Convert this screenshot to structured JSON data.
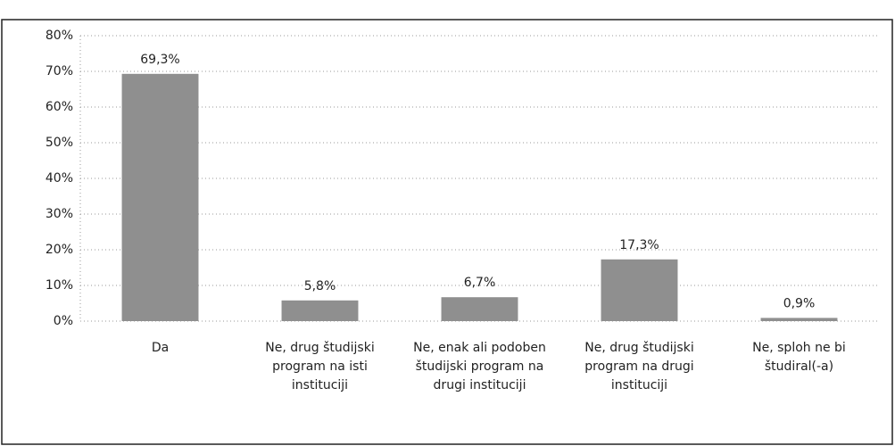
{
  "chart_data": {
    "type": "bar",
    "categories": [
      "Da",
      "Ne, drug študijski program na isti instituciji",
      "Ne, enak ali podoben študijski program na drugi instituciji",
      "Ne, drug študijski program na drugi instituciji",
      "Ne, sploh ne bi študiral(-a)"
    ],
    "values": [
      69.3,
      5.8,
      6.7,
      17.3,
      0.9
    ],
    "value_labels": [
      "69,3%",
      "5,8%",
      "6,7%",
      "17,3%",
      "0,9%"
    ],
    "color": "#8f8f8f",
    "ylim": [
      0,
      80
    ],
    "yticks": [
      {
        "value": 0,
        "label": "0%"
      },
      {
        "value": 10,
        "label": "10%"
      },
      {
        "value": 20,
        "label": "20%"
      },
      {
        "value": 30,
        "label": "30%"
      },
      {
        "value": 40,
        "label": "40%"
      },
      {
        "value": 50,
        "label": "50%"
      },
      {
        "value": 60,
        "label": "60%"
      },
      {
        "value": 70,
        "label": "70%"
      },
      {
        "value": 80,
        "label": "80%"
      }
    ],
    "grid": true
  }
}
